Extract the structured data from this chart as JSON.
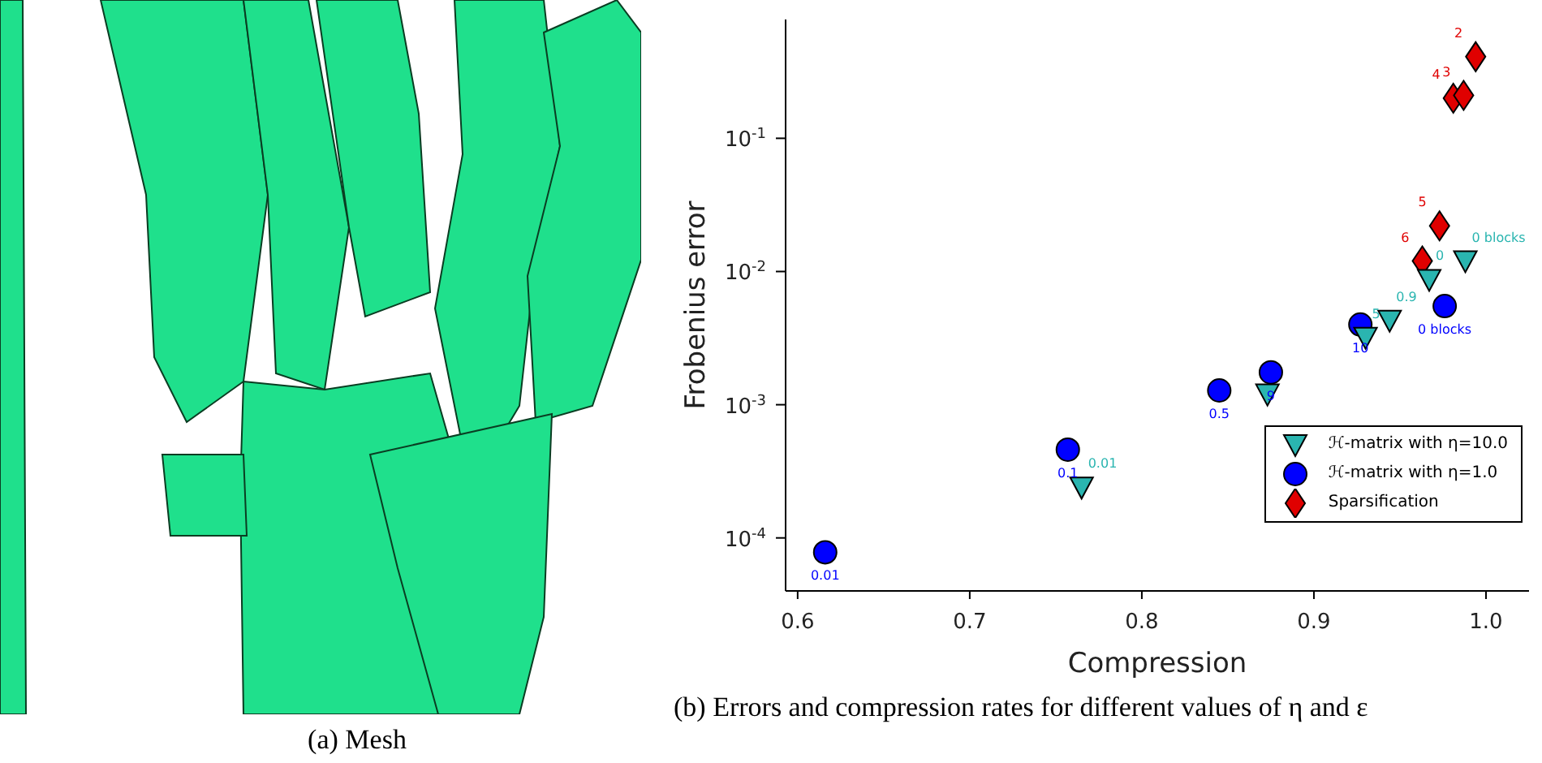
{
  "chart_data": {
    "type": "scatter",
    "xlabel": "Compression",
    "ylabel": "Frobenius error",
    "log": "y",
    "xlim": [
      0.593,
      1.025
    ],
    "xticks": [
      0.6,
      0.7,
      0.8,
      0.9,
      {
        "value": 1,
        "label": "1.0"
      }
    ],
    "ylim": [
      4e-05,
      0.78
    ],
    "yticks": [
      {
        "value": 0.0001,
        "label": "10$^{-4}$"
      },
      {
        "value": 0.001,
        "label": "10$^{-3}$"
      },
      {
        "value": 0.01,
        "label": "10$^{-2}$"
      },
      {
        "value": 0.1,
        "label": "10$^{-1}$"
      }
    ],
    "grid": false,
    "legend": "bottom right",
    "series": [
      {
        "name": "ℋ-matrix with η=10.0",
        "color": "#2ab5b0",
        "marker": "triangle",
        "x": [
          0.765,
          0.873,
          0.93,
          0.944,
          0.967,
          0.988
        ],
        "values": [
          0.00024,
          0.0012,
          0.0032,
          0.0043,
          0.0087,
          0.012
        ]
      },
      {
        "name": "ℋ-matrix with η=1.0",
        "color": "#0000ff",
        "marker": "circle",
        "x": [
          0.616,
          0.757,
          0.845,
          0.875,
          0.927,
          0.976
        ],
        "values": [
          7.8e-05,
          0.00046,
          0.00128,
          0.00175,
          0.004,
          0.0055
        ]
      },
      {
        "name": "Sparsification",
        "color": "#e00000",
        "marker": "diamond",
        "x": [
          0.963,
          0.973,
          0.981,
          0.987,
          0.994
        ],
        "values": [
          0.012,
          0.022,
          0.2,
          0.21,
          0.41
        ]
      }
    ],
    "annotations": [
      "(a) Mesh",
      "(b) Errors and compression rates for different values of η and ε",
      {
        "text": "0.01",
        "x": 0.765,
        "y": 0.00024
      },
      {
        "text": "5",
        "x": 0.93,
        "y": 0.0032
      },
      {
        "text": "0.9",
        "x": 0.944,
        "y": 0.0043
      },
      {
        "text": "0",
        "x": 0.967,
        "y": 0.0087
      },
      {
        "text": "0 blocks",
        "x": 0.988,
        "y": 0.012
      },
      {
        "text": "0.01",
        "x": 0.616,
        "y": 7.8e-05
      },
      {
        "text": "0.1",
        "x": 0.757,
        "y": 0.00046
      },
      {
        "text": "0.5",
        "x": 0.845,
        "y": 0.00128
      },
      {
        "text": "9",
        "x": 0.875,
        "y": 0.00175
      },
      {
        "text": "10",
        "x": 0.927,
        "y": 0.004
      },
      {
        "text": "0 blocks",
        "x": 0.976,
        "y": 0.0055
      },
      {
        "text": "6",
        "x": 0.963,
        "y": 0.012
      },
      {
        "text": "5",
        "x": 0.973,
        "y": 0.022
      },
      {
        "text": "4",
        "x": 0.981,
        "y": 0.2
      },
      {
        "text": "3",
        "x": 0.987,
        "y": 0.21
      },
      {
        "text": "2",
        "x": 0.994,
        "y": 0.41
      }
    ]
  }
}
